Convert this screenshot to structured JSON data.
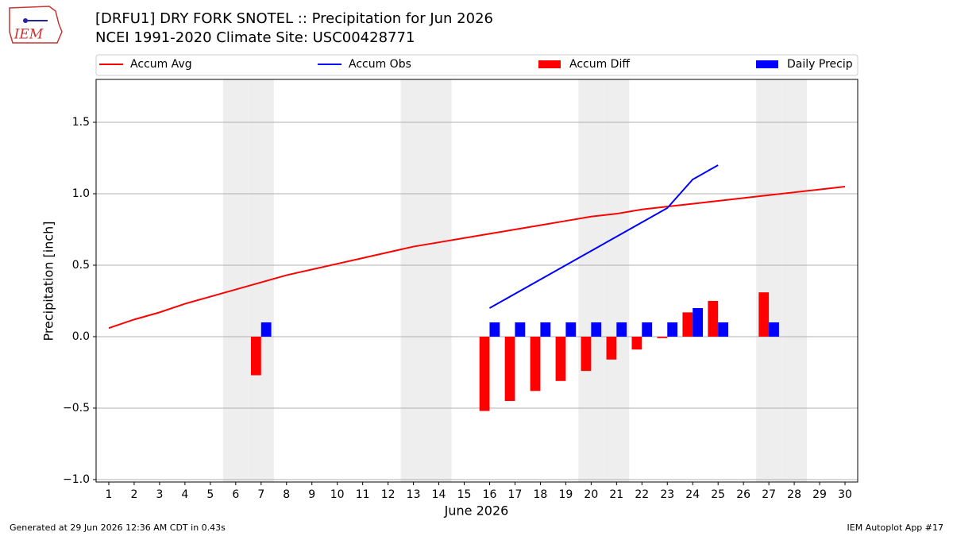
{
  "chart_data": {
    "type": "bar_line",
    "title": "[DRFU1] DRY FORK SNOTEL :: Precipitation for Jun 2026",
    "subtitle": "NCEI 1991-2020 Climate Site: USC00428771",
    "logo_text": "IEM",
    "x_label": "June 2026",
    "y_label": "Precipitation [inch]",
    "footer_left": "Generated at 29 Jun 2026 12:36 AM CDT in 0.43s",
    "footer_right": "IEM Autoplot App #17",
    "x": [
      1,
      2,
      3,
      4,
      5,
      6,
      7,
      8,
      9,
      10,
      11,
      12,
      13,
      14,
      15,
      16,
      17,
      18,
      19,
      20,
      21,
      22,
      23,
      24,
      25,
      26,
      27,
      28,
      29,
      30
    ],
    "xlim": [
      0.5,
      30.5
    ],
    "xticks": [
      1,
      2,
      3,
      4,
      5,
      6,
      7,
      8,
      9,
      10,
      11,
      12,
      13,
      14,
      15,
      16,
      17,
      18,
      19,
      20,
      21,
      22,
      23,
      24,
      25,
      26,
      27,
      28,
      29,
      30
    ],
    "ylim": [
      -1.017,
      1.8
    ],
    "yticks": [
      {
        "value": -1.0,
        "label": "−1.0"
      },
      {
        "value": -0.5,
        "label": "−0.5"
      },
      {
        "value": 0.0,
        "label": "0.0"
      },
      0.5,
      {
        "value": 1.0,
        "label": "1.0"
      },
      1.5
    ],
    "grid": true,
    "shaded_days": [
      6,
      7,
      13,
      14,
      20,
      21,
      27,
      28
    ],
    "series": [
      {
        "name": "Accum Avg",
        "type": "line",
        "color": "#ff0000",
        "values": [
          0.06,
          0.12,
          0.17,
          0.23,
          0.28,
          0.33,
          0.38,
          0.43,
          0.47,
          0.51,
          0.55,
          0.59,
          0.63,
          0.66,
          0.69,
          0.72,
          0.75,
          0.78,
          0.81,
          0.84,
          0.86,
          0.89,
          0.91,
          0.93,
          0.95,
          0.97,
          0.99,
          1.01,
          1.03,
          1.05
        ]
      },
      {
        "name": "Accum Obs",
        "type": "line",
        "color": "#0000ff",
        "values": [
          null,
          null,
          null,
          null,
          null,
          null,
          null,
          null,
          null,
          null,
          null,
          null,
          null,
          null,
          null,
          0.2,
          0.3,
          0.4,
          0.5,
          0.6,
          0.7,
          0.8,
          0.9,
          1.1,
          1.2,
          null,
          null,
          null,
          null,
          null
        ]
      },
      {
        "name": "Accum Diff",
        "type": "bar",
        "color": "#ff0000",
        "values": [
          null,
          null,
          null,
          null,
          null,
          null,
          -0.27,
          null,
          null,
          null,
          null,
          null,
          null,
          null,
          null,
          -0.52,
          -0.45,
          -0.38,
          -0.31,
          -0.24,
          -0.16,
          -0.09,
          -0.01,
          0.17,
          0.25,
          null,
          0.31,
          null,
          null,
          null
        ]
      },
      {
        "name": "Daily Precip",
        "type": "bar",
        "color": "#0000ff",
        "values": [
          null,
          null,
          null,
          null,
          null,
          null,
          0.1,
          null,
          null,
          null,
          null,
          null,
          null,
          null,
          null,
          0.1,
          0.1,
          0.1,
          0.1,
          0.1,
          0.1,
          0.1,
          0.1,
          0.2,
          0.1,
          null,
          0.1,
          null,
          null,
          null
        ]
      }
    ]
  }
}
